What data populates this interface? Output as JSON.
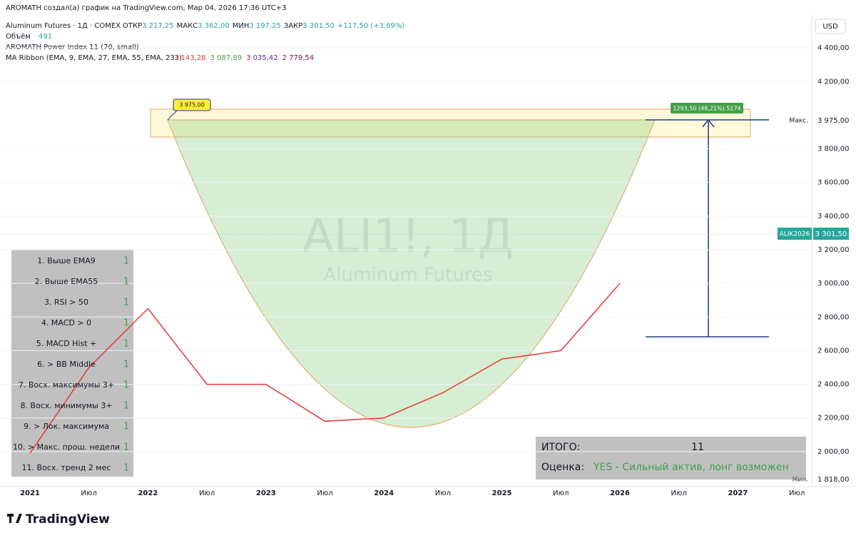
{
  "header": "AROMATH создал(а) график на TradingView.com, Мар 04, 2026 17:36 UTC+3",
  "legend": {
    "symbol": "Aluminum Futures · 1Д · COMEX",
    "ohlc": [
      {
        "label": "ОТКР",
        "value": "3 217,25"
      },
      {
        "label": "МАКС",
        "value": "3 362,00"
      },
      {
        "label": "МИН",
        "value": "3 197,25"
      },
      {
        "label": "ЗАКР",
        "value": "3 301,50"
      }
    ],
    "change": "+117,50 (+3,69%)",
    "volume_label": "Объём",
    "volume": "491",
    "indicator": "AROMATH Power Index 11 (70, small)",
    "ma_label": "MA Ribbon (EMA, 9, EMA, 27, EMA, 55, EMA, 233)",
    "ma_values": [
      "3 143,28",
      "3 087,89",
      "3 035,42",
      "2 779,54"
    ]
  },
  "currency": "USD",
  "watermark": {
    "title": "ALI1!, 1Д",
    "subtitle": "Aluminum Futures"
  },
  "chart_data": {
    "type": "line",
    "categories": [
      "2021",
      "Июл",
      "2022",
      "Июл",
      "2023",
      "Июл",
      "2024",
      "Июл",
      "2025",
      "Июл",
      "2026",
      "Июл",
      "2027",
      "Июл"
    ],
    "series": [
      {
        "color": "#e53935",
        "values": [
          1990,
          2500,
          2850,
          2400,
          2400,
          2180,
          2200,
          2350,
          2550,
          2600,
          3000,
          null,
          null,
          null
        ]
      }
    ],
    "ylim": [
      1800,
      4600
    ],
    "yticks": [
      {
        "value": 2000,
        "label": "2 000,00"
      },
      {
        "value": 2200,
        "label": "2 200,00"
      },
      {
        "value": 2400,
        "label": "2 400,00"
      },
      {
        "value": 2600,
        "label": "2 600,00"
      },
      {
        "value": 2800,
        "label": "2 800,00"
      },
      {
        "value": 3000,
        "label": "3 000,00"
      },
      {
        "value": 3200,
        "label": "3 200,00"
      },
      {
        "value": 3400,
        "label": "3 400,00"
      },
      {
        "value": 3600,
        "label": "3 600,00"
      },
      {
        "value": 3800,
        "label": "3 800,00"
      },
      {
        "value": 4200,
        "label": "4 200,00"
      },
      {
        "value": 4400,
        "label": "4 400,00"
      }
    ]
  },
  "price_labels": {
    "max_label": "Макс.",
    "max": "3 975,00",
    "symbol": "ALIK2026",
    "last": "3 301,50",
    "min_label": "Мин.",
    "min": "1 818,00"
  },
  "callout": "3 975,00",
  "measure": "1293,50 (48,21%) 5174",
  "criteria": [
    {
      "label": "1. Выше EMA9",
      "score": "1"
    },
    {
      "label": "2. Выше EMA55",
      "score": "1"
    },
    {
      "label": "3. RSI > 50",
      "score": "1"
    },
    {
      "label": "4. MACD > 0",
      "score": "1"
    },
    {
      "label": "5. MACD Hist +",
      "score": "1"
    },
    {
      "label": "6. > BB Middle",
      "score": "1"
    },
    {
      "label": "7. Восх. максимумы 3+",
      "score": "1"
    },
    {
      "label": "8. Восх. минимумы 3+",
      "score": "1"
    },
    {
      "label": "9. > Лок. максимума",
      "score": "1"
    },
    {
      "label": "10. > Макс. прош. недели",
      "score": "1"
    },
    {
      "label": "11. Восх. тренд 2 мес",
      "score": "1"
    }
  ],
  "summary": {
    "total_label": "ИТОГО:",
    "total": "11",
    "rating_label": "Оценка:",
    "rating": "YES - Сильный актив, лонг возможен"
  },
  "brand": "TradingView"
}
